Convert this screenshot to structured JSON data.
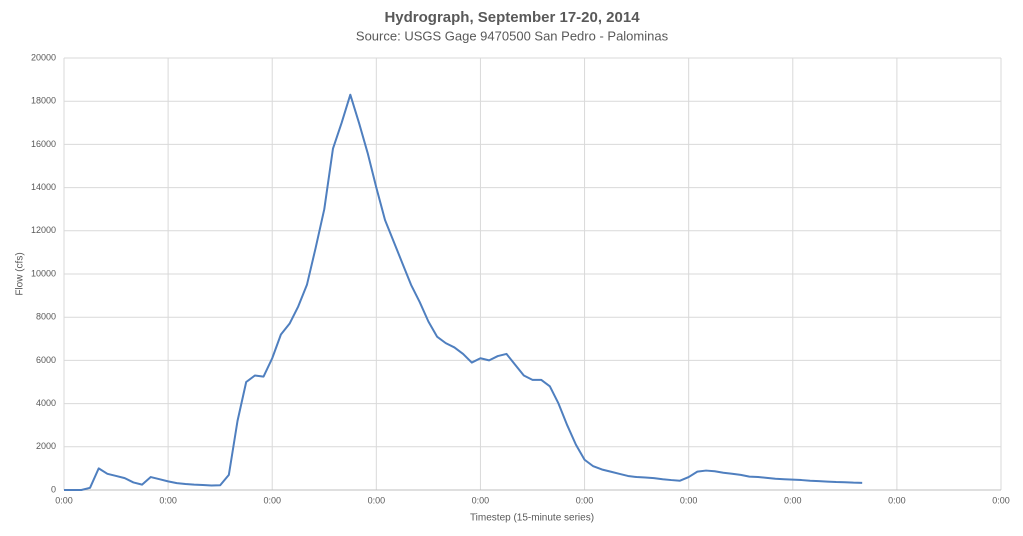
{
  "chart_data": {
    "type": "line",
    "title": "Hydrograph, September 17-20, 2014",
    "subtitle": "Source: USGS Gage 9470500 San Pedro - Palominas",
    "x_label": "Timestep (15-minute series)",
    "y_label": "Flow (cfs)",
    "color": "#4f7fbf",
    "grid": true,
    "ylim": [
      0,
      20000
    ],
    "yticks": [
      0,
      2000,
      4000,
      6000,
      8000,
      10000,
      12000,
      14000,
      16000,
      18000,
      20000
    ],
    "categories": [
      "0:00",
      null,
      null,
      null,
      null,
      null,
      null,
      null,
      null,
      null,
      null,
      null,
      "0:00",
      null,
      null,
      null,
      null,
      null,
      null,
      null,
      null,
      null,
      null,
      null,
      "0:00",
      null,
      null,
      null,
      null,
      null,
      null,
      null,
      null,
      null,
      null,
      null,
      "0:00",
      null,
      null,
      null,
      null,
      null,
      null,
      null,
      null,
      null,
      null,
      null,
      "0:00",
      null,
      null,
      null,
      null,
      null,
      null,
      null,
      null,
      null,
      null,
      null,
      "0:00",
      null,
      null,
      null,
      null,
      null,
      null,
      null,
      null,
      null,
      null,
      null,
      "0:00",
      null,
      null,
      null,
      null,
      null,
      null,
      null,
      null,
      null,
      null,
      null,
      "0:00",
      null,
      null,
      null,
      null,
      null,
      null,
      null,
      null,
      null,
      null,
      null,
      "0:00",
      null,
      null,
      null,
      null,
      null,
      null,
      null,
      null,
      null,
      null,
      null,
      "0:00"
    ],
    "values": [
      0,
      0,
      0,
      100,
      1000,
      750,
      650,
      550,
      350,
      250,
      600,
      500,
      400,
      320,
      280,
      250,
      230,
      210,
      220,
      700,
      3200,
      5000,
      5300,
      5250,
      6100,
      7200,
      7700,
      8500,
      9500,
      11200,
      13000,
      15800,
      17000,
      18300,
      17000,
      15600,
      14000,
      12500,
      11500,
      10500,
      9500,
      8700,
      7800,
      7100,
      6800,
      6600,
      6300,
      5900,
      6100,
      6000,
      6200,
      6300,
      5800,
      5300,
      5100,
      5100,
      4800,
      4000,
      3000,
      2100,
      1400,
      1100,
      950,
      850,
      750,
      650,
      600,
      580,
      550,
      500,
      460,
      430,
      600,
      850,
      900,
      870,
      800,
      750,
      700,
      620,
      600,
      560,
      520,
      500,
      480,
      460,
      430,
      410,
      390,
      370,
      360,
      340,
      330,
      null,
      null,
      null,
      null,
      null,
      null,
      null,
      null,
      null,
      null,
      null,
      null,
      null,
      null,
      null,
      null
    ]
  }
}
